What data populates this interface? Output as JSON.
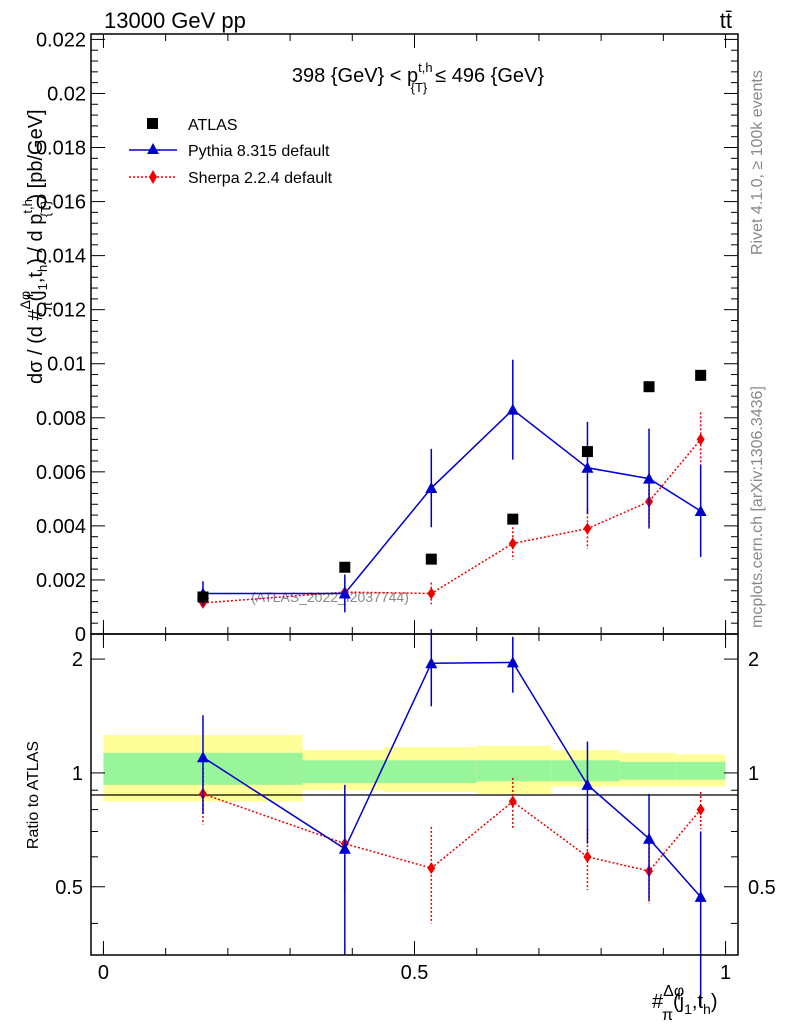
{
  "header": {
    "energy_label": "13000 GeV pp",
    "process_label": "tt̄"
  },
  "side_labels": {
    "rivet": "Rivet 4.1.0, ≥ 100k events",
    "mcplots": "mcplots.cern.ch [arXiv:1306.3436]"
  },
  "chart_data": [
    {
      "type": "scatter",
      "title": "398 {GeV} < p^{t,h}_{T} ≤ 496 {GeV}",
      "title_parts": {
        "left": "398 {GeV} < p",
        "sup": "t,h",
        "sub": "{T}",
        "right": "≤ 496 {GeV}"
      },
      "watermark": "(ATLAS_2022_I2037744)",
      "ylabel": "dσ / (d #Δφ/π(j1,th) / d p_T^{t,h}) [pb/GeV]",
      "ylabel_parts": {
        "a": "dσ / (d #",
        "frac_num": "Δφ",
        "frac_den": "π",
        "b": "(j",
        "b_sub": "1",
        "c": ",t",
        "c_sub": "h",
        "d": ") / d p",
        "d_sup": "t,h",
        "d_sub": "{T}",
        "e": ") [pb/GeV]"
      },
      "xlim": [
        -0.02,
        1.02
      ],
      "ylim": [
        0,
        0.0222
      ],
      "yticks": [
        0,
        0.002,
        0.004,
        0.006,
        0.008,
        0.01,
        0.012,
        0.014,
        0.016,
        0.018,
        0.02,
        0.022
      ],
      "ytick_labels": [
        "0",
        "0.002",
        "0.004",
        "0.006",
        "0.008",
        "0.01",
        "0.012",
        "0.014",
        "0.016",
        "0.018",
        "0.02",
        "0.022"
      ],
      "legend": [
        {
          "name": "ATLAS",
          "color": "#000000",
          "marker": "square"
        },
        {
          "name": "Pythia 8.315 default",
          "color": "#0000cc",
          "marker": "triangle"
        },
        {
          "name": "Sherpa 2.2.4 default",
          "color": "#ee0000",
          "marker": "diamond"
        }
      ],
      "series": [
        {
          "name": "ATLAS",
          "color": "#000000",
          "x": [
            0.16,
            0.388,
            0.527,
            0.658,
            0.778,
            0.877,
            0.96
          ],
          "y": [
            0.00137,
            0.00247,
            0.00277,
            0.00425,
            0.00675,
            0.00915,
            0.00957
          ],
          "err": [
            0,
            0,
            0,
            0,
            0,
            0,
            0
          ]
        },
        {
          "name": "Pythia 8.315 default",
          "color": "#0000cc",
          "x": [
            0.16,
            0.388,
            0.527,
            0.658,
            0.778,
            0.877,
            0.96
          ],
          "y": [
            0.0015,
            0.0015,
            0.0054,
            0.0083,
            0.00615,
            0.00575,
            0.00455
          ],
          "err": [
            0.00045,
            0.0007,
            0.00145,
            0.00185,
            0.0017,
            0.00185,
            0.0017
          ]
        },
        {
          "name": "Sherpa 2.2.4 default",
          "color": "#ee0000",
          "x": [
            0.16,
            0.388,
            0.527,
            0.658,
            0.778,
            0.877,
            0.96
          ],
          "y": [
            0.00115,
            0.00155,
            0.0015,
            0.00335,
            0.0039,
            0.0049,
            0.0072
          ],
          "err": [
            0.0002,
            0.0004,
            0.0004,
            0.0006,
            0.00075,
            0.0009,
            0.001
          ]
        }
      ]
    },
    {
      "type": "scatter",
      "ylabel": "Ratio to ATLAS",
      "xlim": [
        -0.02,
        1.02
      ],
      "ylim": [
        0.33,
        2.33
      ],
      "yticks": [
        0.5,
        1,
        2
      ],
      "ytick_labels": [
        "0.5",
        "1",
        "2"
      ],
      "xticks": [
        0,
        0.5,
        1
      ],
      "xtick_labels": [
        "0",
        "0.5",
        "1"
      ],
      "xlabel_parts": {
        "a": "#",
        "frac_num": "Δφ",
        "frac_den": "π",
        "b": "(j",
        "b_sub": "1",
        "c": ",t",
        "c_sub": "h",
        "d": ")"
      },
      "reference_line": 1,
      "bins": [
        0,
        0.32,
        0.45,
        0.6,
        0.72,
        0.83,
        0.92,
        1.0
      ],
      "band_inner": [
        [
          0.93,
          1.13
        ],
        [
          0.94,
          1.08
        ],
        [
          0.94,
          1.08
        ],
        [
          0.95,
          1.08
        ],
        [
          0.95,
          1.08
        ],
        [
          0.96,
          1.07
        ],
        [
          0.96,
          1.07
        ]
      ],
      "band_outer": [
        [
          0.84,
          1.26
        ],
        [
          0.9,
          1.15
        ],
        [
          0.89,
          1.17
        ],
        [
          0.88,
          1.18
        ],
        [
          0.92,
          1.15
        ],
        [
          0.92,
          1.13
        ],
        [
          0.92,
          1.12
        ]
      ],
      "series": [
        {
          "name": "Pythia 8.315 default",
          "color": "#0000cc",
          "x": [
            0.16,
            0.388,
            0.527,
            0.658,
            0.778,
            0.877,
            0.96
          ],
          "y": [
            1.1,
            0.63,
            1.95,
            1.96,
            0.93,
            0.67,
            0.47
          ],
          "err": [
            0.32,
            0.3,
            0.45,
            0.33,
            0.28,
            0.21,
            0.23
          ]
        },
        {
          "name": "Sherpa 2.2.4 default",
          "color": "#ee0000",
          "x": [
            0.16,
            0.388,
            0.527,
            0.658,
            0.778,
            0.877,
            0.96
          ],
          "y": [
            0.88,
            0.65,
            0.56,
            0.84,
            0.6,
            0.55,
            0.8
          ],
          "err": [
            0.15,
            0.16,
            0.16,
            0.13,
            0.11,
            0.1,
            0.09
          ]
        }
      ]
    }
  ]
}
